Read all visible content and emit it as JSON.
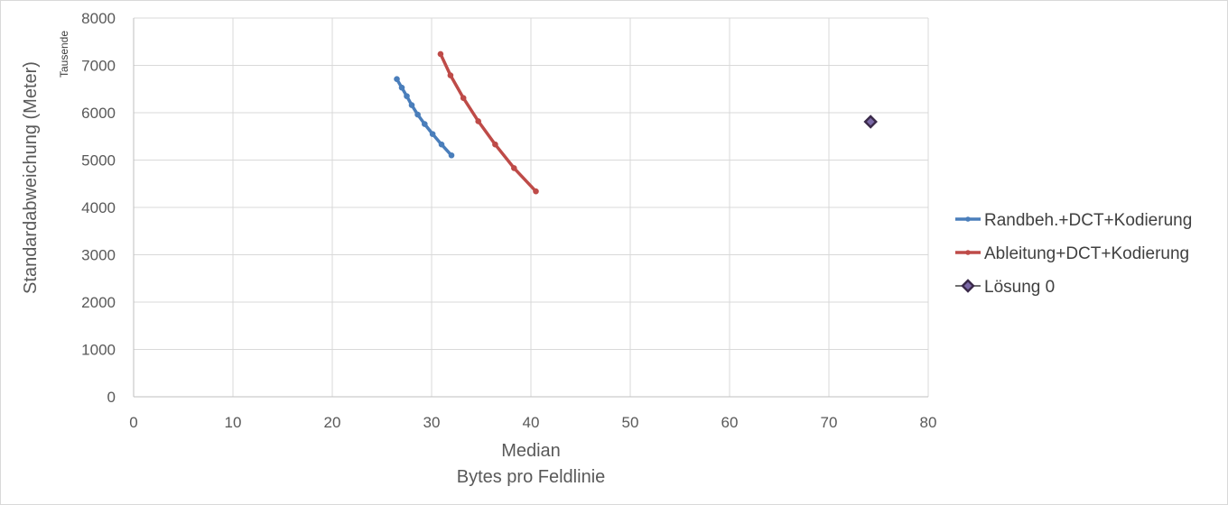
{
  "chart_data": {
    "type": "scatter",
    "xlabel": "Median",
    "xlabel_line2": "Bytes pro Feldlinie",
    "ylabel": "Standardabweichung (Meter)",
    "y_unit_label": "Tausende",
    "xlim": [
      0,
      80
    ],
    "ylim": [
      0,
      8000
    ],
    "x_ticks": [
      0,
      10,
      20,
      30,
      40,
      50,
      60,
      70,
      80
    ],
    "y_ticks": [
      0,
      1000,
      2000,
      3000,
      4000,
      5000,
      6000,
      7000,
      8000
    ],
    "grid": true,
    "legend_position": "right",
    "series": [
      {
        "name": "Randbeh.+DCT+Kodierung",
        "color": "#4a7ebb",
        "marker": "circle",
        "line": true,
        "points": [
          [
            26.5,
            6710
          ],
          [
            27.0,
            6530
          ],
          [
            27.5,
            6350
          ],
          [
            28.0,
            6160
          ],
          [
            28.6,
            5960
          ],
          [
            29.3,
            5760
          ],
          [
            30.1,
            5550
          ],
          [
            31.0,
            5330
          ],
          [
            32.0,
            5100
          ]
        ]
      },
      {
        "name": "Ableitung+DCT+Kodierung",
        "color": "#be4b48",
        "marker": "circle",
        "line": true,
        "points": [
          [
            30.9,
            7240
          ],
          [
            31.9,
            6790
          ],
          [
            33.2,
            6310
          ],
          [
            34.7,
            5820
          ],
          [
            36.4,
            5330
          ],
          [
            38.3,
            4830
          ],
          [
            40.5,
            4340
          ]
        ]
      },
      {
        "name": "Lösung 0",
        "color": "#3b2a4a",
        "fill_color": "#7a68a6",
        "marker": "diamond",
        "line": false,
        "points": [
          [
            74.2,
            5810
          ]
        ]
      }
    ]
  }
}
